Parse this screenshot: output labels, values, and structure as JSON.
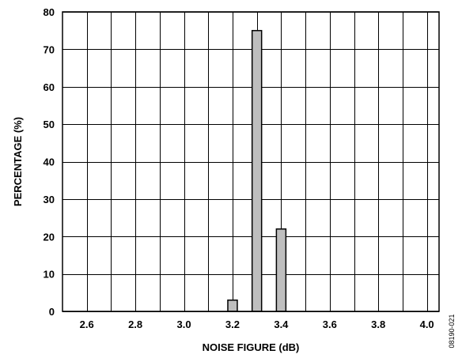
{
  "chart_data": {
    "type": "bar",
    "title": "",
    "xlabel": "NOISE FIGURE (dB)",
    "ylabel": "PERCENTAGE (%)",
    "xlim": [
      2.5,
      4.05
    ],
    "ylim": [
      0,
      80
    ],
    "x_ticks": [
      2.6,
      2.8,
      3.0,
      3.2,
      3.4,
      3.6,
      3.8,
      4.0
    ],
    "x_tick_labels": [
      "2.6",
      "2.8",
      "3.0",
      "3.2",
      "3.4",
      "3.6",
      "3.8",
      "4.0"
    ],
    "y_ticks": [
      0,
      10,
      20,
      30,
      40,
      50,
      60,
      70,
      80
    ],
    "y_tick_labels": [
      "0",
      "10",
      "20",
      "30",
      "40",
      "50",
      "60",
      "70",
      "80"
    ],
    "grid": true,
    "bar_color": "#bebebe",
    "x": [
      3.2,
      3.3,
      3.4
    ],
    "values": [
      3,
      75,
      22
    ]
  },
  "figure_id": "08190-021"
}
